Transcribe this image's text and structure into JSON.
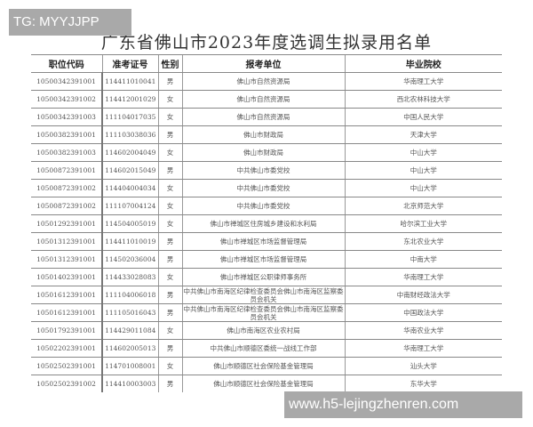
{
  "watermarks": {
    "top_left": "TG: MYYJJPP",
    "bottom_right": "www.h5-lejingzhenren.com"
  },
  "title": "广东省佛山市2023年度选调生拟录用名单",
  "table": {
    "headers": [
      "职位代码",
      "准考证号",
      "性别",
      "报考单位",
      "毕业院校"
    ],
    "rows": [
      [
        "10500342391001",
        "114411010041",
        "男",
        "佛山市自然资源局",
        "华南理工大学"
      ],
      [
        "10500342391002",
        "114412001029",
        "女",
        "佛山市自然资源局",
        "西北农林科技大学"
      ],
      [
        "10500342391003",
        "111104017035",
        "女",
        "佛山市自然资源局",
        "中国人民大学"
      ],
      [
        "10500382391001",
        "111103038036",
        "男",
        "佛山市财政局",
        "天津大学"
      ],
      [
        "10500382391003",
        "114602004049",
        "女",
        "佛山市财政局",
        "中山大学"
      ],
      [
        "10500872391001",
        "114602015049",
        "男",
        "中共佛山市委党校",
        "中山大学"
      ],
      [
        "10500872391002",
        "114404004034",
        "女",
        "中共佛山市委党校",
        "中山大学"
      ],
      [
        "10500872391002",
        "111107004124",
        "女",
        "中共佛山市委党校",
        "北京师范大学"
      ],
      [
        "10501292391001",
        "114504005019",
        "女",
        "佛山市禅城区住房城乡建设和水利局",
        "哈尔滨工业大学"
      ],
      [
        "10501312391001",
        "114411010019",
        "男",
        "佛山市禅城区市场监督管理局",
        "东北农业大学"
      ],
      [
        "10501312391001",
        "114502036004",
        "男",
        "佛山市禅城区市场监督管理局",
        "中南大学"
      ],
      [
        "10501402391001",
        "114433028083",
        "女",
        "佛山市禅城区公职律师事务所",
        "华南理工大学"
      ],
      [
        "10501612391001",
        "111104006018",
        "男",
        "中共佛山市南海区纪律检查委员会佛山市南海区监察委员会机关",
        "中南财经政法大学"
      ],
      [
        "10501612391001",
        "111105016043",
        "男",
        "中共佛山市南海区纪律检查委员会佛山市南海区监察委员会机关",
        "中国政法大学"
      ],
      [
        "10501792391001",
        "114429011084",
        "女",
        "佛山市南海区农业农村局",
        "华南农业大学"
      ],
      [
        "10502202391001",
        "114602005013",
        "男",
        "中共佛山市顺德区委统一战线工作部",
        "华南理工大学"
      ],
      [
        "10502502391001",
        "114701008001",
        "女",
        "佛山市顺德区社会保险基金管理局",
        "汕头大学"
      ],
      [
        "10502502391002",
        "114410003003",
        "男",
        "佛山市顺德区社会保险基金管理局",
        "东华大学"
      ]
    ]
  }
}
